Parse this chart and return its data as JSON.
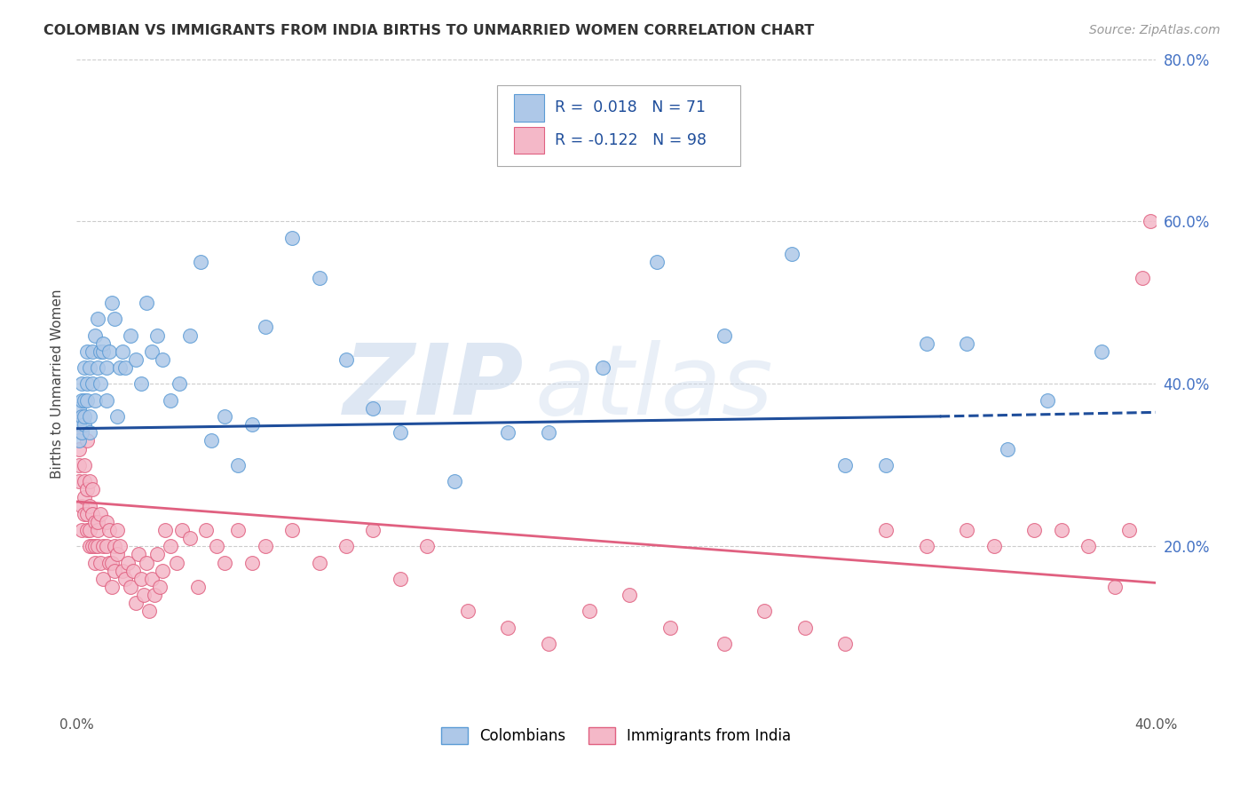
{
  "title": "COLOMBIAN VS IMMIGRANTS FROM INDIA BIRTHS TO UNMARRIED WOMEN CORRELATION CHART",
  "source": "Source: ZipAtlas.com",
  "ylabel": "Births to Unmarried Women",
  "xlim": [
    0.0,
    0.4
  ],
  "ylim": [
    0.0,
    0.8
  ],
  "xtick_positions": [
    0.0,
    0.4
  ],
  "xtick_labels": [
    "0.0%",
    "40.0%"
  ],
  "ytick_positions": [
    0.2,
    0.4,
    0.6,
    0.8
  ],
  "ytick_labels": [
    "20.0%",
    "40.0%",
    "60.0%",
    "80.0%"
  ],
  "grid_yticks": [
    0.2,
    0.4,
    0.6,
    0.8
  ],
  "series1": {
    "name": "Colombians",
    "color": "#aec8e8",
    "edge_color": "#5b9bd5",
    "R": 0.018,
    "N": 71,
    "line_color": "#1f4e9b",
    "trend_x": [
      0.0,
      0.32,
      0.4
    ],
    "trend_y": [
      0.345,
      0.36,
      0.365
    ],
    "trend_solid_end": 0.32,
    "x": [
      0.001,
      0.001,
      0.001,
      0.002,
      0.002,
      0.002,
      0.002,
      0.003,
      0.003,
      0.003,
      0.003,
      0.004,
      0.004,
      0.004,
      0.005,
      0.005,
      0.005,
      0.006,
      0.006,
      0.007,
      0.007,
      0.008,
      0.008,
      0.009,
      0.009,
      0.01,
      0.01,
      0.011,
      0.011,
      0.012,
      0.013,
      0.014,
      0.015,
      0.016,
      0.017,
      0.018,
      0.02,
      0.022,
      0.024,
      0.026,
      0.028,
      0.03,
      0.032,
      0.035,
      0.038,
      0.042,
      0.046,
      0.05,
      0.055,
      0.06,
      0.065,
      0.07,
      0.08,
      0.09,
      0.1,
      0.11,
      0.12,
      0.14,
      0.16,
      0.175,
      0.195,
      0.215,
      0.24,
      0.265,
      0.285,
      0.3,
      0.315,
      0.33,
      0.345,
      0.36,
      0.38
    ],
    "y": [
      0.33,
      0.35,
      0.37,
      0.36,
      0.38,
      0.34,
      0.4,
      0.35,
      0.42,
      0.38,
      0.36,
      0.44,
      0.4,
      0.38,
      0.42,
      0.36,
      0.34,
      0.44,
      0.4,
      0.38,
      0.46,
      0.42,
      0.48,
      0.44,
      0.4,
      0.44,
      0.45,
      0.38,
      0.42,
      0.44,
      0.5,
      0.48,
      0.36,
      0.42,
      0.44,
      0.42,
      0.46,
      0.43,
      0.4,
      0.5,
      0.44,
      0.46,
      0.43,
      0.38,
      0.4,
      0.46,
      0.55,
      0.33,
      0.36,
      0.3,
      0.35,
      0.47,
      0.58,
      0.53,
      0.43,
      0.37,
      0.34,
      0.28,
      0.34,
      0.34,
      0.42,
      0.55,
      0.46,
      0.56,
      0.3,
      0.3,
      0.45,
      0.45,
      0.32,
      0.38,
      0.44
    ]
  },
  "series2": {
    "name": "Immigrants from India",
    "color": "#f4b8c8",
    "edge_color": "#e06080",
    "R": -0.122,
    "N": 98,
    "line_color": "#e06080",
    "trend_x": [
      0.0,
      0.4
    ],
    "trend_y": [
      0.255,
      0.155
    ],
    "x": [
      0.001,
      0.001,
      0.001,
      0.002,
      0.002,
      0.002,
      0.002,
      0.003,
      0.003,
      0.003,
      0.003,
      0.004,
      0.004,
      0.004,
      0.004,
      0.005,
      0.005,
      0.005,
      0.005,
      0.006,
      0.006,
      0.006,
      0.007,
      0.007,
      0.007,
      0.008,
      0.008,
      0.008,
      0.009,
      0.009,
      0.01,
      0.01,
      0.011,
      0.011,
      0.012,
      0.012,
      0.013,
      0.013,
      0.014,
      0.014,
      0.015,
      0.015,
      0.016,
      0.017,
      0.018,
      0.019,
      0.02,
      0.021,
      0.022,
      0.023,
      0.024,
      0.025,
      0.026,
      0.027,
      0.028,
      0.029,
      0.03,
      0.031,
      0.032,
      0.033,
      0.035,
      0.037,
      0.039,
      0.042,
      0.045,
      0.048,
      0.052,
      0.055,
      0.06,
      0.065,
      0.07,
      0.08,
      0.09,
      0.1,
      0.11,
      0.12,
      0.13,
      0.145,
      0.16,
      0.175,
      0.19,
      0.205,
      0.22,
      0.24,
      0.255,
      0.27,
      0.285,
      0.3,
      0.315,
      0.33,
      0.34,
      0.355,
      0.365,
      0.375,
      0.385,
      0.39,
      0.395,
      0.398
    ],
    "y": [
      0.32,
      0.3,
      0.28,
      0.34,
      0.36,
      0.25,
      0.22,
      0.3,
      0.28,
      0.26,
      0.24,
      0.33,
      0.27,
      0.24,
      0.22,
      0.28,
      0.25,
      0.22,
      0.2,
      0.27,
      0.24,
      0.2,
      0.23,
      0.2,
      0.18,
      0.22,
      0.23,
      0.2,
      0.24,
      0.18,
      0.2,
      0.16,
      0.23,
      0.2,
      0.18,
      0.22,
      0.18,
      0.15,
      0.2,
      0.17,
      0.22,
      0.19,
      0.2,
      0.17,
      0.16,
      0.18,
      0.15,
      0.17,
      0.13,
      0.19,
      0.16,
      0.14,
      0.18,
      0.12,
      0.16,
      0.14,
      0.19,
      0.15,
      0.17,
      0.22,
      0.2,
      0.18,
      0.22,
      0.21,
      0.15,
      0.22,
      0.2,
      0.18,
      0.22,
      0.18,
      0.2,
      0.22,
      0.18,
      0.2,
      0.22,
      0.16,
      0.2,
      0.12,
      0.1,
      0.08,
      0.12,
      0.14,
      0.1,
      0.08,
      0.12,
      0.1,
      0.08,
      0.22,
      0.2,
      0.22,
      0.2,
      0.22,
      0.22,
      0.2,
      0.15,
      0.22,
      0.53,
      0.6
    ]
  },
  "watermark_text": "ZIP",
  "watermark_text2": "atlas",
  "background_color": "#ffffff",
  "grid_color": "#cccccc"
}
